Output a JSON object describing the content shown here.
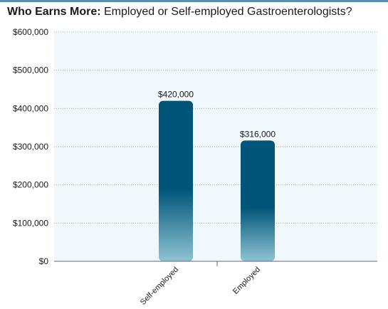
{
  "title": {
    "bold": "Who Earns More:",
    "rest": " Employed or Self-employed Gastroenterologists?"
  },
  "colors": {
    "bar_top": "#005578",
    "bar_bottom": "#8fc3d4",
    "plot_bg": "#f0f8fc",
    "grid": "#aaaaaa",
    "rule": "#5a8faa"
  },
  "chart_data": {
    "type": "bar",
    "categories": [
      "Self-employed",
      "Employed"
    ],
    "values": [
      420000,
      316000
    ],
    "value_labels": [
      "$420,000",
      "$316,000"
    ],
    "ylim": [
      0,
      600000
    ],
    "yticks": [
      0,
      100000,
      200000,
      300000,
      400000,
      500000,
      600000
    ],
    "ytick_labels": [
      "$0",
      "$100,000",
      "$200,000",
      "$300,000",
      "$400,000",
      "$500,000",
      "$600,000"
    ],
    "grid": true,
    "legend": "none"
  }
}
